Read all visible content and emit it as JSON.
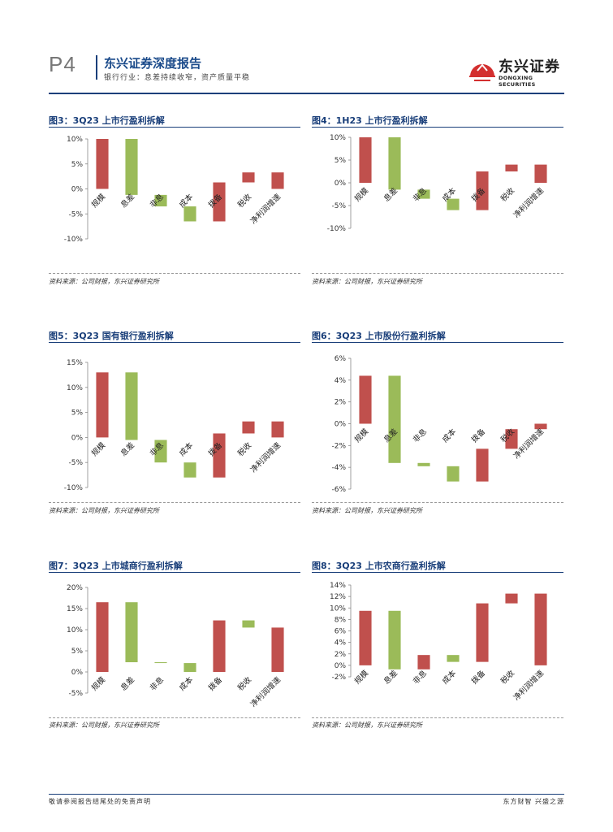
{
  "header": {
    "page_number": "P4",
    "report_title": "东兴证券深度报告",
    "report_subtitle": "银行行业：息差持续收窄，资产质量平稳",
    "logo_cn": "东兴证券",
    "logo_en": "DONGXING SECURITIES"
  },
  "colors": {
    "positive": "#c0504d",
    "negative": "#9bbb59",
    "rule": "#1a3f7a"
  },
  "charts": [
    {
      "id": "fig3",
      "title": "图3：3Q23 上市行盈利拆解",
      "source": "资料来源：公司财报，东兴证券研究所"
    },
    {
      "id": "fig4",
      "title": "图4：1H23 上市行盈利拆解",
      "source": "资料来源：公司财报，东兴证券研究所"
    },
    {
      "id": "fig5",
      "title": "图5：3Q23 国有银行盈利拆解",
      "source": "资料来源：公司财报，东兴证券研究所"
    },
    {
      "id": "fig6",
      "title": "图6：3Q23 上市股份行盈利拆解",
      "source": "资料来源：公司财报，东兴证券研究所"
    },
    {
      "id": "fig7",
      "title": "图7：3Q23 上市城商行盈利拆解",
      "source": "资料来源：公司财报，东兴证券研究所"
    },
    {
      "id": "fig8",
      "title": "图8：3Q23 上市农商行盈利拆解",
      "source": "资料来源：公司财报，东兴证券研究所"
    }
  ],
  "chart_data": [
    {
      "type": "bar",
      "subtype": "waterfall",
      "title": "图3：3Q23 上市行盈利拆解",
      "categories": [
        "规模",
        "息差",
        "非息",
        "成本",
        "拨备",
        "税收",
        "净利润增速"
      ],
      "bars": [
        [
          0,
          10
        ],
        [
          10,
          -1.2
        ],
        [
          -1.2,
          -3.5
        ],
        [
          -3.5,
          -6.5
        ],
        [
          -6.5,
          1.3
        ],
        [
          1.3,
          3.3
        ],
        [
          0,
          3.3
        ]
      ],
      "ylim": [
        -10,
        10
      ],
      "yticks": [
        -10,
        -5,
        0,
        5,
        10
      ]
    },
    {
      "type": "bar",
      "subtype": "waterfall",
      "title": "图4：1H23 上市行盈利拆解",
      "categories": [
        "规模",
        "息差",
        "非息",
        "成本",
        "拨备",
        "税收",
        "净利润增速"
      ],
      "bars": [
        [
          0,
          10
        ],
        [
          10,
          -1.5
        ],
        [
          -1.5,
          -3.5
        ],
        [
          -3.5,
          -6
        ],
        [
          -6,
          2.5
        ],
        [
          2.5,
          4
        ],
        [
          0,
          4
        ]
      ],
      "ylim": [
        -10,
        10
      ],
      "yticks": [
        -10,
        -5,
        0,
        5,
        10
      ]
    },
    {
      "type": "bar",
      "subtype": "waterfall",
      "title": "图5：3Q23 国有银行盈利拆解",
      "categories": [
        "规模",
        "息差",
        "非息",
        "成本",
        "拨备",
        "税收",
        "净利润增速"
      ],
      "bars": [
        [
          0,
          13
        ],
        [
          13,
          -0.5
        ],
        [
          -0.5,
          -5
        ],
        [
          -5,
          -8
        ],
        [
          -8,
          0.8
        ],
        [
          0.8,
          3.2
        ],
        [
          0,
          3.2
        ]
      ],
      "ylim": [
        -10,
        15
      ],
      "yticks": [
        -10,
        -5,
        0,
        5,
        10,
        15
      ]
    },
    {
      "type": "bar",
      "subtype": "waterfall",
      "title": "图6：3Q23 上市股份行盈利拆解",
      "categories": [
        "规模",
        "息差",
        "非息",
        "成本",
        "拨备",
        "税收",
        "净利润增速"
      ],
      "bars": [
        [
          0,
          4.4
        ],
        [
          4.4,
          -3.6
        ],
        [
          -3.6,
          -3.9
        ],
        [
          -3.9,
          -5.3
        ],
        [
          -5.3,
          -2.3
        ],
        [
          -2.3,
          -0.5
        ],
        [
          0,
          -0.5
        ]
      ],
      "ylim": [
        -6,
        6
      ],
      "yticks": [
        -6,
        -4,
        -2,
        0,
        2,
        4,
        6
      ]
    },
    {
      "type": "bar",
      "subtype": "waterfall",
      "title": "图7：3Q23 上市城商行盈利拆解",
      "categories": [
        "规模",
        "息差",
        "非息",
        "成本",
        "拨备",
        "税收",
        "净利润增速"
      ],
      "bars": [
        [
          0,
          16.5
        ],
        [
          16.5,
          2.3
        ],
        [
          2.3,
          2.1
        ],
        [
          2.1,
          0
        ],
        [
          0,
          12.2
        ],
        [
          12.2,
          10.5
        ],
        [
          0,
          10.5
        ]
      ],
      "ylim": [
        -5,
        20
      ],
      "yticks": [
        -5,
        0,
        5,
        10,
        15,
        20
      ]
    },
    {
      "type": "bar",
      "subtype": "waterfall",
      "title": "图8：3Q23 上市农商行盈利拆解",
      "categories": [
        "规模",
        "息差",
        "非息",
        "成本",
        "拨备",
        "税收",
        "净利润增速"
      ],
      "bars": [
        [
          0,
          9.5
        ],
        [
          9.5,
          -0.7
        ],
        [
          -0.7,
          1.8
        ],
        [
          1.8,
          0.6
        ],
        [
          0.6,
          10.8
        ],
        [
          10.8,
          12.5
        ],
        [
          0,
          12.5
        ]
      ],
      "ylim": [
        -2,
        14
      ],
      "yticks": [
        -2,
        0,
        2,
        4,
        6,
        8,
        10,
        12,
        14
      ]
    }
  ],
  "footer": {
    "disclaimer": "敬请参阅报告结尾处的免责声明",
    "slogan": "东方财智 兴盛之源"
  }
}
